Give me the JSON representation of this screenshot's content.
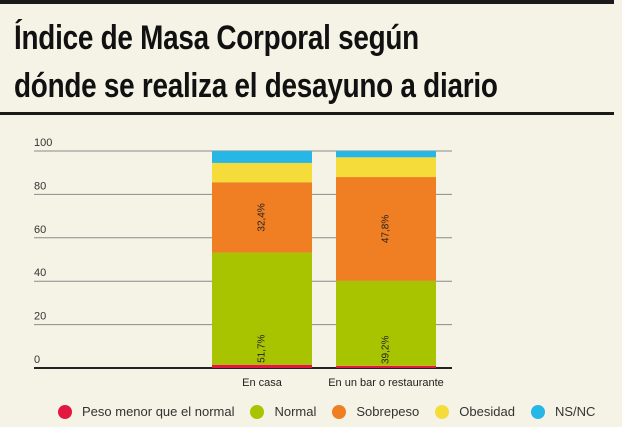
{
  "title": "Índice de Masa Corporal según dónde se realiza el desayuno a diario",
  "chart_data": {
    "type": "bar",
    "stacked": true,
    "categories": [
      "En casa",
      "En un bar o restaurante"
    ],
    "ylim": [
      0,
      100
    ],
    "yticks": [
      0,
      20,
      40,
      60,
      80,
      100
    ],
    "xlabel": "",
    "ylabel": "",
    "series": [
      {
        "name": "Peso menor que el normal",
        "color": "#e3173f",
        "values": [
          1.5,
          1.0
        ],
        "labels": [
          "",
          ""
        ]
      },
      {
        "name": "Normal",
        "color": "#a8c400",
        "values": [
          51.7,
          39.2
        ],
        "labels": [
          "51,7%",
          "39,2%"
        ]
      },
      {
        "name": "Sobrepeso",
        "color": "#f07e22",
        "values": [
          32.4,
          47.8
        ],
        "labels": [
          "32,4%",
          "47,8%"
        ]
      },
      {
        "name": "Obesidad",
        "color": "#f6dc3a",
        "values": [
          8.9,
          9.1
        ],
        "labels": [
          "",
          ""
        ]
      },
      {
        "name": "NS/NC",
        "color": "#27b7e6",
        "values": [
          5.5,
          2.9
        ],
        "labels": [
          "",
          ""
        ]
      }
    ],
    "legend_position": "bottom"
  }
}
